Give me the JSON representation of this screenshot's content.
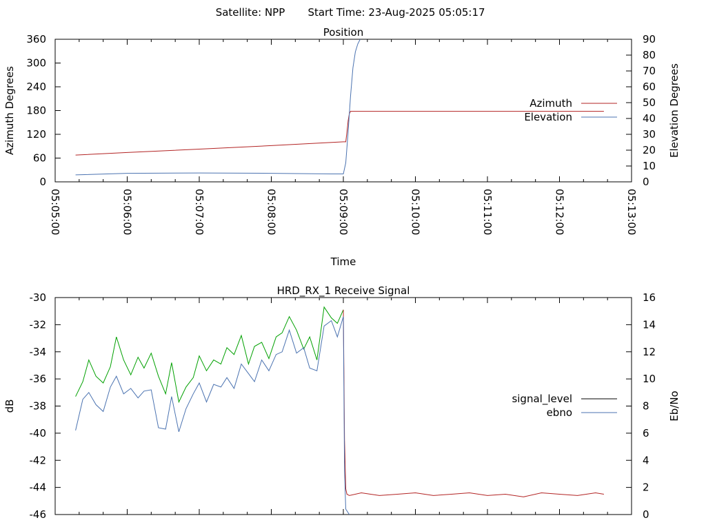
{
  "header": {
    "satellite_label": "Satellite: NPP",
    "start_label": "Start Time: 23-Aug-2025 05:05:17"
  },
  "chart_data": [
    {
      "type": "line",
      "title": "Position",
      "xlabel": "Time",
      "ylabel": "Azimuth Degrees",
      "y2label": "Elevation Degrees",
      "xlim": [
        "05:05:00",
        "05:13:00"
      ],
      "ylim": [
        0,
        360
      ],
      "y2lim": [
        0,
        90
      ],
      "yticks": [
        0,
        60,
        120,
        180,
        240,
        300,
        360
      ],
      "y2ticks": [
        0,
        10,
        20,
        30,
        40,
        50,
        60,
        70,
        80,
        90
      ],
      "xticks": [
        "05:05:00",
        "05:06:00",
        "05:07:00",
        "05:08:00",
        "05:09:00",
        "05:10:00",
        "05:11:00",
        "05:12:00",
        "05:13:00"
      ],
      "legend_position": "right",
      "series": [
        {
          "name": "Azimuth",
          "axis": "y",
          "color": "#b22222",
          "x": [
            "05:05:17",
            "05:06:00",
            "05:07:00",
            "05:08:00",
            "05:09:00",
            "05:09:02",
            "05:09:03",
            "05:09:04",
            "05:09:05",
            "05:09:06",
            "05:10:00",
            "05:11:00",
            "05:12:00",
            "05:12:37"
          ],
          "y": [
            67.7,
            74.0,
            82.6,
            91.4,
            101.1,
            101.1,
            125.0,
            155.0,
            172.0,
            178.0,
            178.0,
            178.0,
            178.0,
            178.0
          ]
        },
        {
          "name": "Elevation",
          "axis": "y2",
          "color": "#4a72b0",
          "x": [
            "05:05:17",
            "05:06:00",
            "05:07:00",
            "05:08:00",
            "05:08:50",
            "05:09:00",
            "05:09:02",
            "05:09:04",
            "05:09:06",
            "05:09:08",
            "05:09:10",
            "05:09:12",
            "05:09:14"
          ],
          "y": [
            4.4,
            5.4,
            5.6,
            5.4,
            5.0,
            5.0,
            12.0,
            32.0,
            54.0,
            72.0,
            82.0,
            87.0,
            90.0
          ]
        }
      ]
    },
    {
      "type": "line",
      "title": "HRD_RX_1 Receive Signal",
      "xlabel": "",
      "ylabel": "dB",
      "y2label": "Eb/No",
      "xlim": [
        "05:05:00",
        "05:13:00"
      ],
      "ylim": [
        -46,
        -30
      ],
      "y2lim": [
        0,
        16
      ],
      "yticks": [
        -46,
        -44,
        -42,
        -40,
        -38,
        -36,
        -34,
        -32,
        -30
      ],
      "y2ticks": [
        0,
        2,
        4,
        6,
        8,
        10,
        12,
        14,
        16
      ],
      "legend_position": "right",
      "legend": [
        {
          "name": "signal_level",
          "color": "#000000"
        },
        {
          "name": "ebno",
          "color": "#4a72b0"
        }
      ],
      "series": [
        {
          "name": "signal_level",
          "axis": "y",
          "color": "#00a000",
          "x": [
            "05:05:17",
            "05:05:23",
            "05:05:28",
            "05:05:34",
            "05:05:40",
            "05:05:46",
            "05:05:51",
            "05:05:57",
            "05:06:03",
            "05:06:09",
            "05:06:14",
            "05:06:20",
            "05:06:26",
            "05:06:32",
            "05:06:37",
            "05:06:43",
            "05:06:49",
            "05:06:55",
            "05:07:00",
            "05:07:06",
            "05:07:12",
            "05:07:18",
            "05:07:23",
            "05:07:29",
            "05:07:35",
            "05:07:41",
            "05:07:46",
            "05:07:52",
            "05:07:58",
            "05:08:04",
            "05:08:09",
            "05:08:15",
            "05:08:21",
            "05:08:27",
            "05:08:32",
            "05:08:38",
            "05:08:44",
            "05:08:50",
            "05:08:55",
            "05:09:00"
          ],
          "y": [
            -37.3,
            -36.2,
            -34.6,
            -35.8,
            -36.3,
            -35.1,
            -32.9,
            -34.6,
            -35.7,
            -34.4,
            -35.2,
            -34.1,
            -35.8,
            -37.1,
            -34.8,
            -37.7,
            -36.6,
            -35.9,
            -34.3,
            -35.4,
            -34.6,
            -34.9,
            -33.7,
            -34.2,
            -32.8,
            -34.9,
            -33.6,
            -33.3,
            -34.5,
            -32.9,
            -32.6,
            -31.4,
            -32.4,
            -33.8,
            -32.9,
            -34.6,
            -30.7,
            -31.5,
            -31.9,
            -30.9
          ]
        },
        {
          "name": "signal_level",
          "axis": "y",
          "color": "#b22222",
          "x": [
            "05:09:00",
            "05:09:01",
            "05:09:02",
            "05:09:03",
            "05:09:05",
            "05:09:15",
            "05:09:30",
            "05:09:45",
            "05:10:00",
            "05:10:15",
            "05:10:30",
            "05:10:45",
            "05:11:00",
            "05:11:15",
            "05:11:30",
            "05:11:45",
            "05:12:00",
            "05:12:15",
            "05:12:30",
            "05:12:37"
          ],
          "y": [
            -30.9,
            -40.5,
            -44.1,
            -44.5,
            -44.6,
            -44.4,
            -44.6,
            -44.5,
            -44.4,
            -44.6,
            -44.5,
            -44.4,
            -44.6,
            -44.5,
            -44.7,
            -44.4,
            -44.5,
            -44.6,
            -44.4,
            -44.5
          ]
        },
        {
          "name": "ebno",
          "axis": "y2",
          "color": "#4a72b0",
          "x": [
            "05:05:17",
            "05:05:23",
            "05:05:28",
            "05:05:34",
            "05:05:40",
            "05:05:46",
            "05:05:51",
            "05:05:57",
            "05:06:03",
            "05:06:09",
            "05:06:14",
            "05:06:20",
            "05:06:26",
            "05:06:32",
            "05:06:37",
            "05:06:43",
            "05:06:49",
            "05:06:55",
            "05:07:00",
            "05:07:06",
            "05:07:12",
            "05:07:18",
            "05:07:23",
            "05:07:29",
            "05:07:35",
            "05:07:41",
            "05:07:46",
            "05:07:52",
            "05:07:58",
            "05:08:04",
            "05:08:09",
            "05:08:15",
            "05:08:21",
            "05:08:27",
            "05:08:32",
            "05:08:38",
            "05:08:44",
            "05:08:50",
            "05:08:55",
            "05:09:00",
            "05:09:01",
            "05:09:02",
            "05:09:05"
          ],
          "y": [
            6.2,
            8.5,
            9.0,
            8.1,
            7.6,
            9.4,
            10.2,
            8.9,
            9.3,
            8.6,
            9.1,
            9.2,
            6.4,
            6.3,
            8.7,
            6.1,
            7.8,
            8.9,
            9.7,
            8.3,
            9.6,
            9.4,
            10.1,
            9.3,
            11.1,
            10.4,
            9.8,
            11.4,
            10.6,
            11.8,
            12.0,
            13.6,
            11.9,
            12.3,
            10.8,
            10.6,
            13.9,
            14.3,
            13.1,
            14.6,
            3.2,
            0.4,
            0.0
          ]
        }
      ]
    }
  ]
}
